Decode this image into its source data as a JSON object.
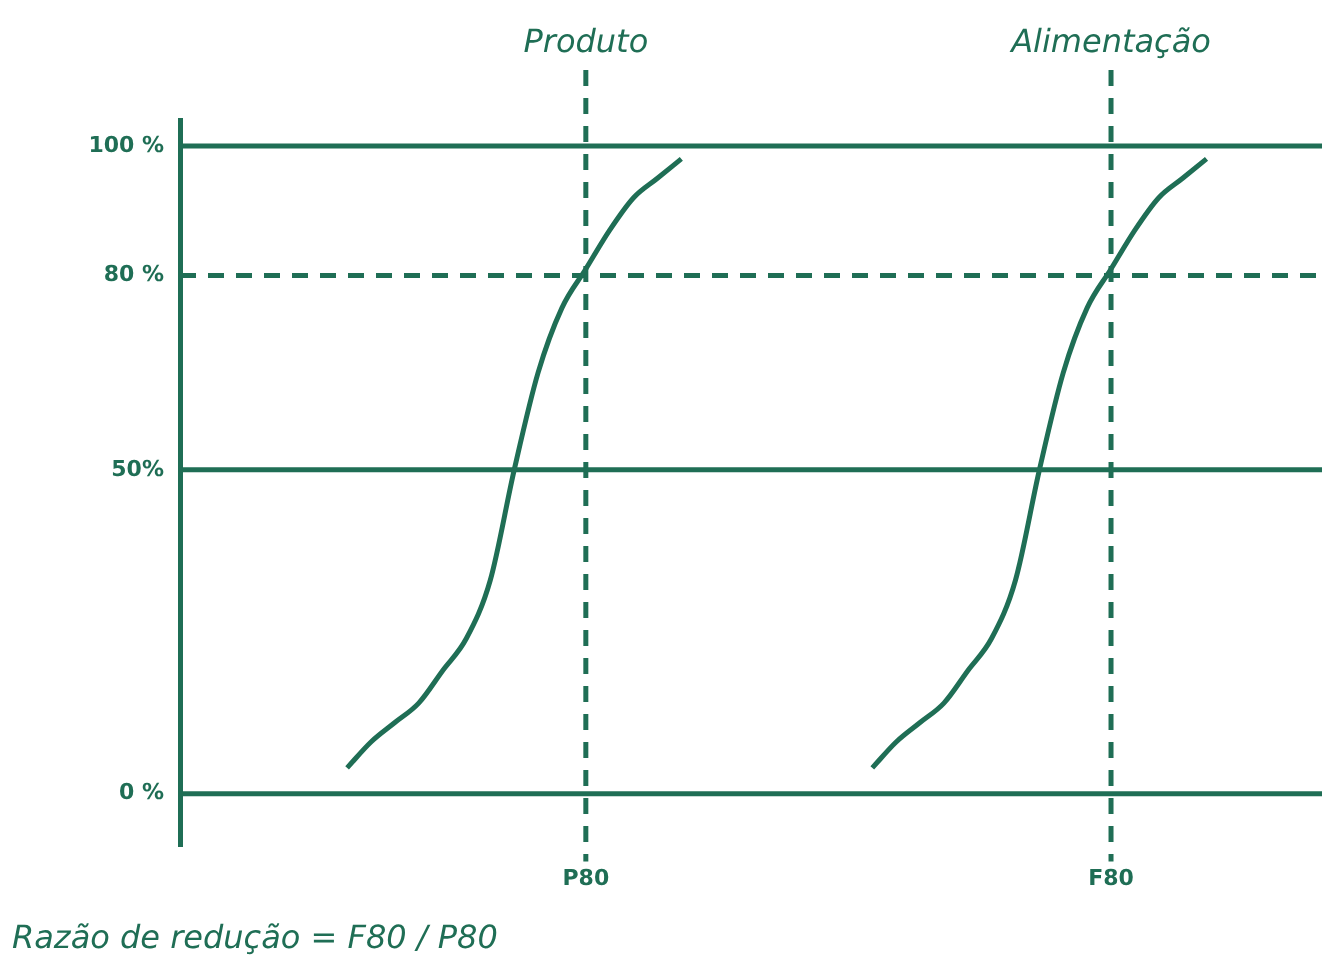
{
  "chart_data": {
    "type": "line",
    "categories": [
      null,
      null,
      null,
      null,
      null,
      null,
      null,
      null,
      null,
      null,
      null,
      null,
      null,
      null,
      null,
      null,
      null,
      "P80",
      null,
      null,
      null,
      null,
      null,
      null,
      null,
      null,
      null,
      null,
      null,
      null,
      null,
      null,
      null,
      null,
      null,
      null,
      null,
      null,
      null,
      "F80",
      null,
      null,
      null,
      null,
      null,
      null,
      null,
      null
    ],
    "ylim": [
      -8,
      104
    ],
    "yticks": [
      {
        "value": 0,
        "label": "0 %"
      },
      {
        "value": 50,
        "label": "50%"
      },
      {
        "value": 80,
        "label": "80 %"
      },
      {
        "value": 100,
        "label": "100 %"
      }
    ],
    "series": [
      {
        "color": "#1f6e55",
        "values": [
          null,
          null,
          null,
          null,
          null,
          null,
          null,
          4,
          8,
          11,
          14,
          19,
          24,
          33,
          50,
          65,
          75,
          81,
          87,
          92,
          95,
          98,
          null,
          null,
          null,
          null,
          null,
          null,
          null,
          null,
          null,
          null,
          null,
          null,
          null,
          null,
          null,
          null,
          null,
          null,
          null,
          null,
          null,
          null,
          null,
          null,
          null,
          null
        ]
      },
      {
        "color": "#1f6e55",
        "values": [
          null,
          null,
          null,
          null,
          null,
          null,
          null,
          null,
          null,
          null,
          null,
          null,
          null,
          null,
          null,
          null,
          null,
          null,
          null,
          null,
          null,
          null,
          null,
          null,
          null,
          null,
          null,
          null,
          null,
          4,
          8,
          11,
          14,
          19,
          24,
          33,
          50,
          65,
          75,
          81,
          87,
          92,
          95,
          98,
          null,
          null,
          null,
          null
        ]
      }
    ],
    "ref_lines": [
      {
        "axis": "x",
        "value": "P80",
        "label": "Produto",
        "color": "#1f6e55",
        "line_style": "dashed"
      },
      {
        "axis": "x",
        "value": "F80",
        "label": "Alimentação",
        "color": "#1f6e55",
        "line_style": "dashed"
      },
      {
        "axis": "y",
        "value": 0,
        "color": "#1f6e55",
        "line_style": "solid"
      },
      {
        "axis": "y",
        "value": 50,
        "color": "#1f6e55",
        "line_style": "solid"
      },
      {
        "axis": "y",
        "value": 80,
        "color": "#1f6e55",
        "line_style": "dashed"
      },
      {
        "axis": "y",
        "value": 100,
        "color": "#1f6e55",
        "line_style": "solid"
      }
    ],
    "grid": false,
    "legend": false,
    "marker": "none",
    "line_style": "solid",
    "annotations": [
      "Razão de redução = F80 / P80"
    ]
  }
}
